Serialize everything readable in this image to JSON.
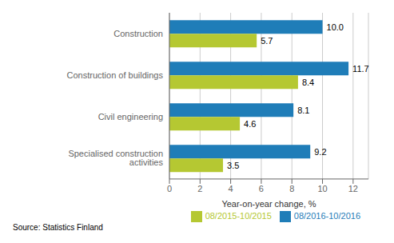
{
  "chart_data": {
    "type": "bar",
    "orientation": "horizontal",
    "categories": [
      "Construction",
      "Construction of buildings",
      "Civil engineering",
      "Specialised construction activities"
    ],
    "series": [
      {
        "name": "08/2016-10/2016",
        "color": "#1f7db8",
        "values": [
          10.0,
          11.7,
          8.1,
          9.2
        ],
        "value_labels": [
          "10.0",
          "11.7",
          "8.1",
          "9.2"
        ]
      },
      {
        "name": "08/2015-10/2015",
        "color": "#b5c832",
        "values": [
          5.7,
          8.4,
          4.6,
          3.5
        ]
      }
    ],
    "xlabel": "Year-on-year change, %",
    "xlim": [
      0,
      13
    ],
    "xticks": [
      0,
      2,
      4,
      6,
      8,
      10,
      12
    ],
    "grid": true,
    "legend": "lower right",
    "data_labels": true,
    "annotations": [
      "Source: Statistics Finland"
    ]
  }
}
